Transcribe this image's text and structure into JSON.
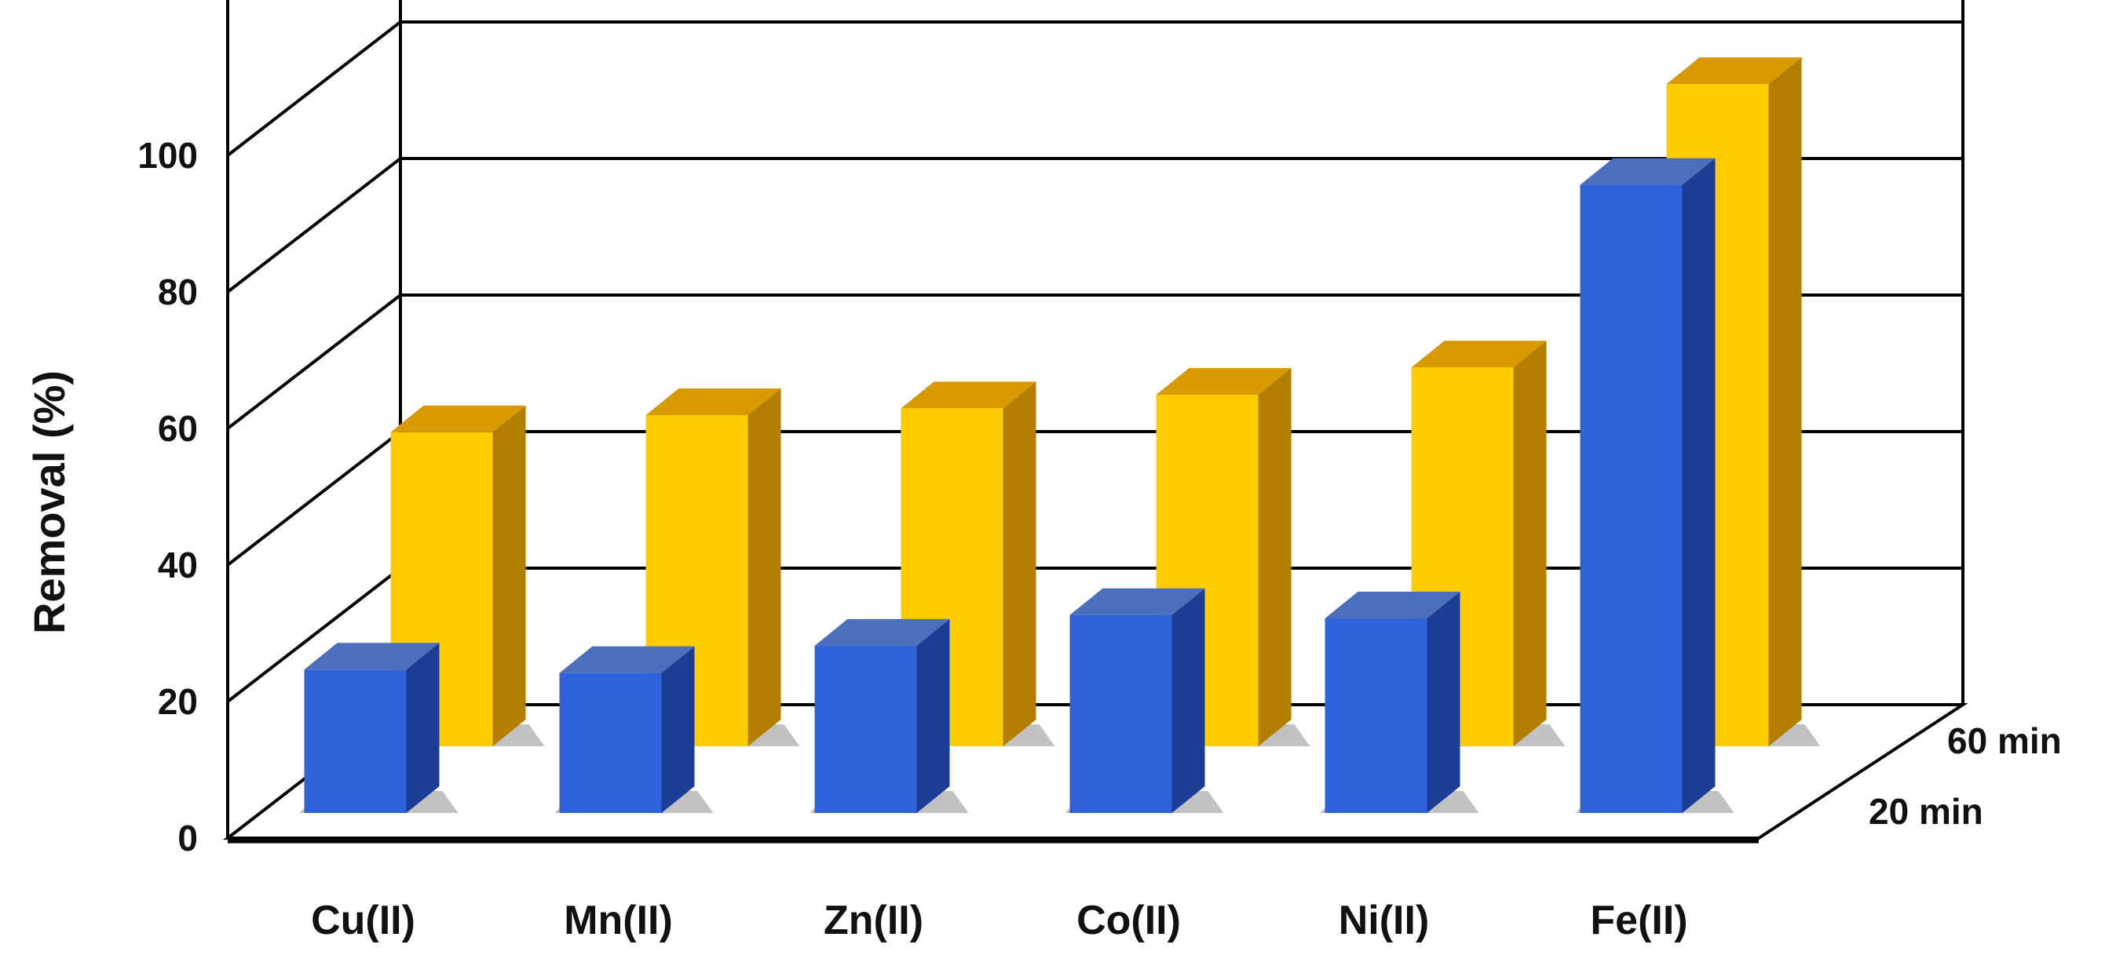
{
  "chart_data": {
    "type": "bar",
    "style": "3d-clustered-depth",
    "title": "",
    "xlabel": "",
    "ylabel": "Removal (%)",
    "ylim": [
      0,
      100
    ],
    "yticks": [
      0,
      20,
      40,
      60,
      80,
      100
    ],
    "grid": true,
    "categories": [
      "Cu(II)",
      "Mn(II)",
      "Zn(II)",
      "Co(II)",
      "Ni(II)",
      "Fe(II)"
    ],
    "series": [
      {
        "name": "20 min",
        "values": [
          21,
          20.5,
          24.5,
          29,
          28.5,
          92
        ]
      },
      {
        "name": "60 min",
        "values": [
          46,
          48.5,
          49.5,
          51.5,
          55.5,
          97
        ]
      }
    ],
    "colors": {
      "20 min": {
        "front": "#2f62d8",
        "top": "#4b6fbd",
        "side": "#1c3d93"
      },
      "60 min": {
        "front": "#ffcc00",
        "top": "#d99a00",
        "side": "#b37e00"
      },
      "axes": "#000000",
      "shadow": "#777777"
    }
  }
}
